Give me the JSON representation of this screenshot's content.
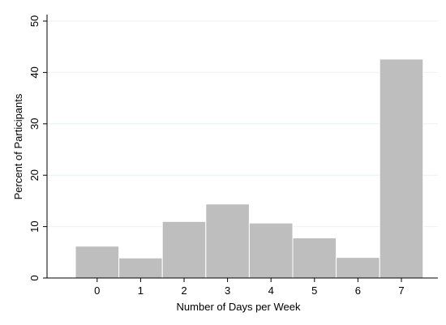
{
  "chart_data": {
    "type": "bar",
    "categories": [
      "0",
      "1",
      "2",
      "3",
      "4",
      "5",
      "6",
      "7"
    ],
    "values": [
      6.2,
      3.9,
      11.0,
      14.4,
      10.7,
      7.8,
      4.0,
      42.6
    ],
    "title": "",
    "xlabel": "Number of Days per Week",
    "ylabel": "Percent of Participants",
    "ylim": [
      0,
      50
    ],
    "yticks": [
      "0",
      "10",
      "20",
      "30",
      "40",
      "50"
    ],
    "grid": true,
    "colors": {
      "bar_fill": "#bebebe",
      "bar_stroke": "#ffffff",
      "grid": "#eaf2f3",
      "axis": "#000000"
    }
  }
}
